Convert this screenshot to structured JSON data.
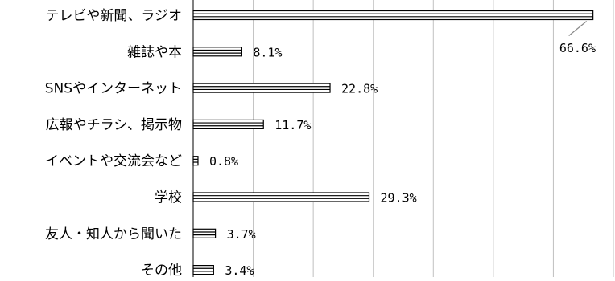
{
  "chart_data": {
    "type": "bar",
    "orientation": "horizontal",
    "categories": [
      "テレビや新聞、ラジオ",
      "雑誌や本",
      "SNSやインターネット",
      "広報やチラシ、掲示物",
      "イベントや交流会など",
      "学校",
      "友人・知人から聞いた",
      "その他"
    ],
    "values": [
      66.6,
      8.1,
      22.8,
      11.7,
      0.8,
      29.3,
      3.7,
      3.4
    ],
    "value_labels": [
      "66.6%",
      "8.1%",
      "22.8%",
      "11.7%",
      "0.8%",
      "29.3%",
      "3.7%",
      "3.4%"
    ],
    "xlim": [
      0,
      70
    ],
    "grid": true,
    "bar_style": "white bar with black horizontal stripes",
    "colors": {
      "bar_fill": "#ffffff",
      "bar_stroke": "#000000",
      "grid": "#c0c0c0",
      "leader": "#888888"
    }
  }
}
